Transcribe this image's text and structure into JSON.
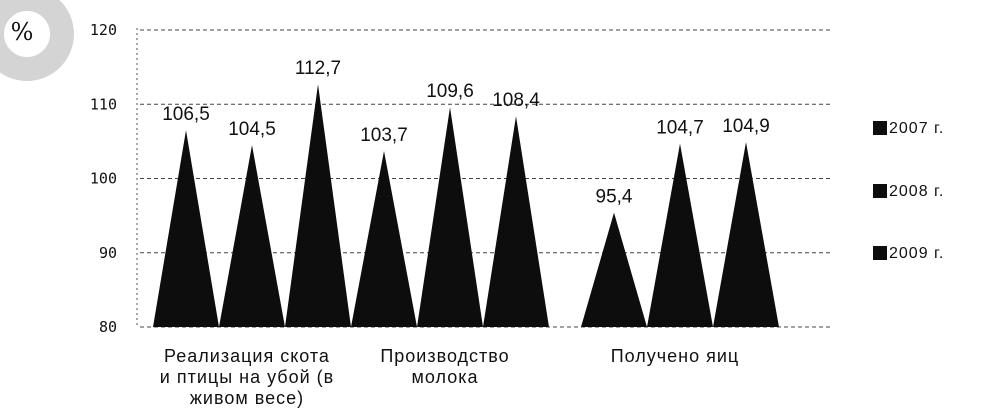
{
  "chart_data": {
    "type": "bar",
    "mark_shape": "triangle",
    "ylabel": "%",
    "ylim": [
      80,
      120
    ],
    "yticks": [
      80,
      90,
      100,
      110,
      120
    ],
    "grid": true,
    "legend_position": "right",
    "categories": [
      [
        "Реализация скота",
        "и птицы на убой (в",
        "живом весе)"
      ],
      [
        "Производство",
        "молока"
      ],
      [
        "Получено яиц"
      ]
    ],
    "series": [
      {
        "name": "2007 г.",
        "values": [
          106.5,
          103.7,
          95.4
        ],
        "labels": [
          "106,5",
          "103,7",
          "95,4"
        ]
      },
      {
        "name": "2008 г.",
        "values": [
          104.5,
          109.6,
          104.7
        ],
        "labels": [
          "104,5",
          "109,6",
          "104,7"
        ]
      },
      {
        "name": "2009 г.",
        "values": [
          112.7,
          108.4,
          104.9
        ],
        "labels": [
          "112,7",
          "108,4",
          "104,9"
        ]
      }
    ],
    "colors": {
      "bars": "#0d0d0d",
      "badge": "#d4d4d4",
      "grid": "#444444"
    }
  }
}
